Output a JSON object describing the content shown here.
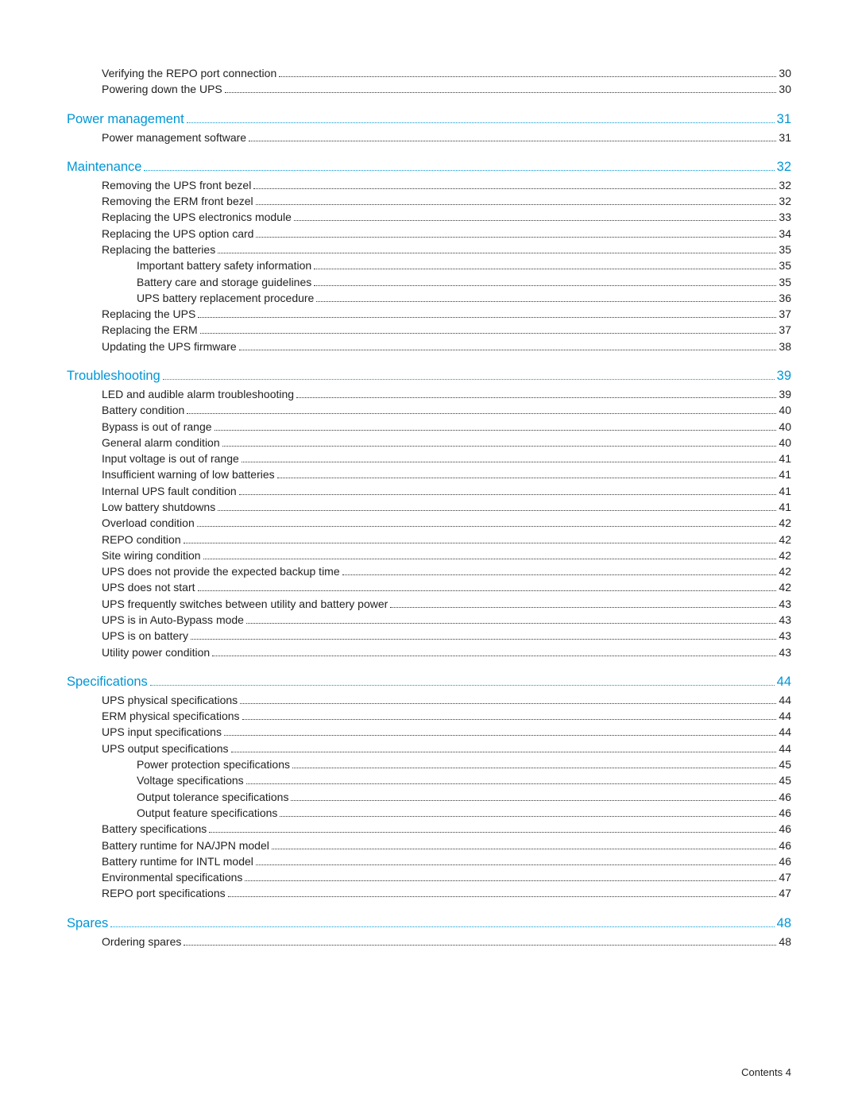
{
  "colors": {
    "heading": "#0096d6",
    "body_text": "#222222",
    "background": "#ffffff",
    "dot_leader": "#333333"
  },
  "typography": {
    "heading_fontsize_pt": 12,
    "body_fontsize_pt": 10,
    "footer_fontsize_pt": 9,
    "font_family": "Arial"
  },
  "footer": {
    "label": "Contents",
    "page": "4"
  },
  "toc": {
    "groups": [
      {
        "gap_before": false,
        "entries": [
          {
            "level": 1,
            "label": "Verifying the REPO port connection",
            "page": "30"
          },
          {
            "level": 1,
            "label": "Powering down the UPS",
            "page": "30"
          }
        ]
      },
      {
        "gap_before": true,
        "entries": [
          {
            "level": 0,
            "label": "Power management",
            "page": "31"
          },
          {
            "level": 1,
            "label": "Power management software",
            "page": "31"
          }
        ]
      },
      {
        "gap_before": true,
        "entries": [
          {
            "level": 0,
            "label": "Maintenance",
            "page": "32"
          },
          {
            "level": 1,
            "label": "Removing the UPS front bezel",
            "page": "32"
          },
          {
            "level": 1,
            "label": "Removing the ERM front bezel",
            "page": "32"
          },
          {
            "level": 1,
            "label": "Replacing the UPS electronics module",
            "page": "33"
          },
          {
            "level": 1,
            "label": "Replacing the UPS option card",
            "page": "34"
          },
          {
            "level": 1,
            "label": "Replacing the batteries",
            "page": "35"
          },
          {
            "level": 2,
            "label": "Important battery safety information",
            "page": "35"
          },
          {
            "level": 2,
            "label": "Battery care and storage guidelines",
            "page": "35"
          },
          {
            "level": 2,
            "label": "UPS battery replacement procedure",
            "page": "36"
          },
          {
            "level": 1,
            "label": "Replacing the UPS",
            "page": "37"
          },
          {
            "level": 1,
            "label": "Replacing the ERM",
            "page": "37"
          },
          {
            "level": 1,
            "label": "Updating the UPS firmware",
            "page": "38"
          }
        ]
      },
      {
        "gap_before": true,
        "entries": [
          {
            "level": 0,
            "label": "Troubleshooting",
            "page": "39"
          },
          {
            "level": 1,
            "label": "LED and audible alarm troubleshooting",
            "page": "39"
          },
          {
            "level": 1,
            "label": "Battery condition",
            "page": "40"
          },
          {
            "level": 1,
            "label": "Bypass is out of range",
            "page": "40"
          },
          {
            "level": 1,
            "label": "General alarm condition",
            "page": "40"
          },
          {
            "level": 1,
            "label": "Input voltage is out of range",
            "page": "41"
          },
          {
            "level": 1,
            "label": "Insufficient warning of low batteries",
            "page": "41"
          },
          {
            "level": 1,
            "label": "Internal UPS fault condition",
            "page": "41"
          },
          {
            "level": 1,
            "label": "Low battery shutdowns",
            "page": "41"
          },
          {
            "level": 1,
            "label": "Overload condition",
            "page": "42"
          },
          {
            "level": 1,
            "label": "REPO condition",
            "page": "42"
          },
          {
            "level": 1,
            "label": "Site wiring condition",
            "page": "42"
          },
          {
            "level": 1,
            "label": "UPS does not provide the expected backup time",
            "page": "42"
          },
          {
            "level": 1,
            "label": "UPS does not start",
            "page": "42"
          },
          {
            "level": 1,
            "label": "UPS frequently switches between utility and battery power",
            "page": "43"
          },
          {
            "level": 1,
            "label": "UPS is in Auto-Bypass mode",
            "page": "43"
          },
          {
            "level": 1,
            "label": "UPS is on battery",
            "page": "43"
          },
          {
            "level": 1,
            "label": "Utility power condition",
            "page": "43"
          }
        ]
      },
      {
        "gap_before": true,
        "entries": [
          {
            "level": 0,
            "label": "Specifications",
            "page": "44"
          },
          {
            "level": 1,
            "label": "UPS physical specifications",
            "page": "44"
          },
          {
            "level": 1,
            "label": "ERM physical specifications",
            "page": "44"
          },
          {
            "level": 1,
            "label": "UPS input specifications",
            "page": "44"
          },
          {
            "level": 1,
            "label": "UPS output specifications",
            "page": "44"
          },
          {
            "level": 2,
            "label": "Power protection specifications",
            "page": "45"
          },
          {
            "level": 2,
            "label": "Voltage specifications",
            "page": "45"
          },
          {
            "level": 2,
            "label": "Output tolerance specifications",
            "page": "46"
          },
          {
            "level": 2,
            "label": "Output feature specifications",
            "page": "46"
          },
          {
            "level": 1,
            "label": "Battery specifications",
            "page": "46"
          },
          {
            "level": 1,
            "label": "Battery runtime for NA/JPN model",
            "page": "46"
          },
          {
            "level": 1,
            "label": "Battery runtime for INTL model",
            "page": "46"
          },
          {
            "level": 1,
            "label": "Environmental specifications",
            "page": "47"
          },
          {
            "level": 1,
            "label": "REPO port specifications",
            "page": "47"
          }
        ]
      },
      {
        "gap_before": true,
        "entries": [
          {
            "level": 0,
            "label": "Spares",
            "page": "48"
          },
          {
            "level": 1,
            "label": "Ordering spares",
            "page": "48"
          }
        ]
      }
    ]
  }
}
